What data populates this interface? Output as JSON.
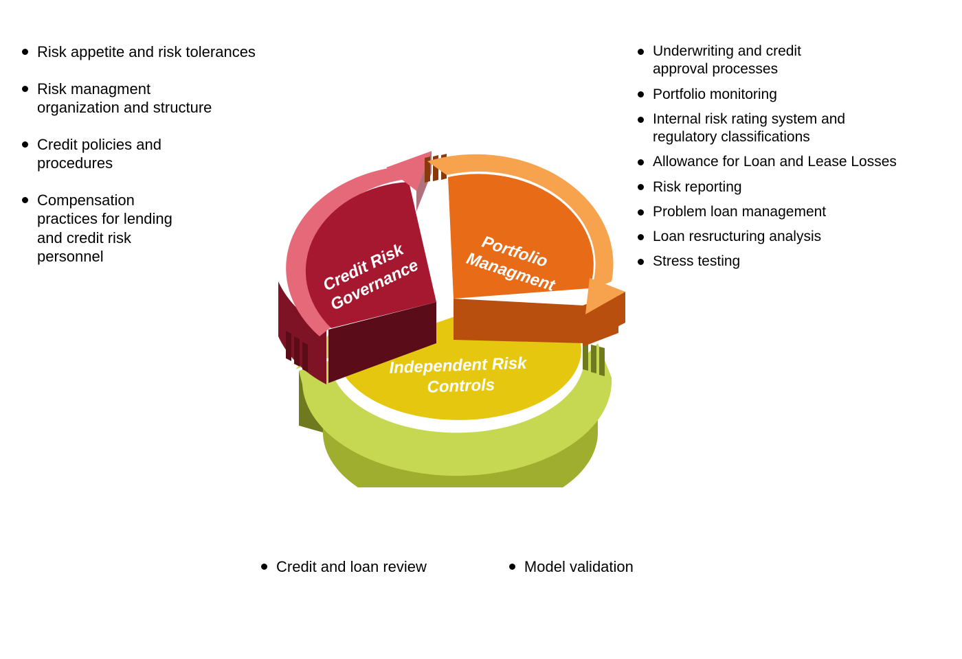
{
  "diagram": {
    "type": "3d-cycle-pie",
    "background_color": "#ffffff",
    "label_color": "#ffffff",
    "label_fontsize": 24,
    "label_fontstyle": "italic",
    "label_fontweight": "700",
    "segments": [
      {
        "key": "credit_risk_governance",
        "label_line1": "Credit Risk",
        "label_line2": "Governance",
        "top_color": "#a5182f",
        "light_color": "#e6697a",
        "side_color": "#7d1324",
        "dark_edge": "#5a0d19"
      },
      {
        "key": "portfolio_management",
        "label_line1": "Portfolio",
        "label_line2": "Managment",
        "top_color": "#e86b17",
        "light_color": "#f7a24d",
        "side_color": "#b84f0f",
        "dark_edge": "#8a3a0a"
      },
      {
        "key": "independent_risk_controls",
        "label_line1": "Independent Risk",
        "label_line2": "Controls",
        "top_color": "#e4c70e",
        "light_color": "#c6d851",
        "side_color": "#9fae2e",
        "dark_edge": "#6f7a1f"
      }
    ]
  },
  "bullets": {
    "left": [
      "Risk appetite and risk tolerances",
      "Risk managment\norganization and structure",
      "Credit policies and\nprocedures",
      "Compensation\npractices for lending\nand credit risk\npersonnel"
    ],
    "right": [
      "Underwriting and credit\napproval processes",
      "Portfolio monitoring",
      "Internal risk rating system and\nregulatory classifications",
      "Allowance for Loan and Lease Losses",
      "Risk reporting",
      "Problem loan management",
      "Loan resructuring analysis",
      "Stress testing"
    ],
    "bottom": [
      "Credit and loan review",
      "Model validation"
    ]
  },
  "typography": {
    "bullet_fontsize": 22,
    "bullet_color": "#000000",
    "bullet_dot_color": "#000000"
  }
}
